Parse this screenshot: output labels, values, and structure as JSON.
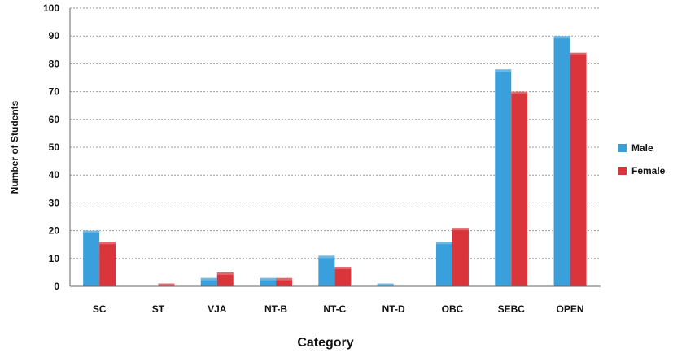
{
  "chart_data": {
    "type": "bar",
    "title": "",
    "xlabel": "Category",
    "ylabel": "Number of Students",
    "categories": [
      "SC",
      "ST",
      "VJA",
      "NT-B",
      "NT-C",
      "NT-D",
      "OBC",
      "SEBC",
      "OPEN"
    ],
    "series": [
      {
        "name": "Male",
        "color": "#3aa0dc",
        "values": [
          20,
          0,
          3,
          3,
          11,
          1,
          16,
          78,
          90
        ]
      },
      {
        "name": "Female",
        "color": "#d9353b",
        "values": [
          16,
          1,
          5,
          3,
          7,
          0,
          21,
          70,
          84
        ]
      }
    ],
    "ylim": [
      0,
      100
    ],
    "yticks": [
      0,
      10,
      20,
      30,
      40,
      50,
      60,
      70,
      80,
      90,
      100
    ],
    "grid": true,
    "legend_position": "right"
  }
}
